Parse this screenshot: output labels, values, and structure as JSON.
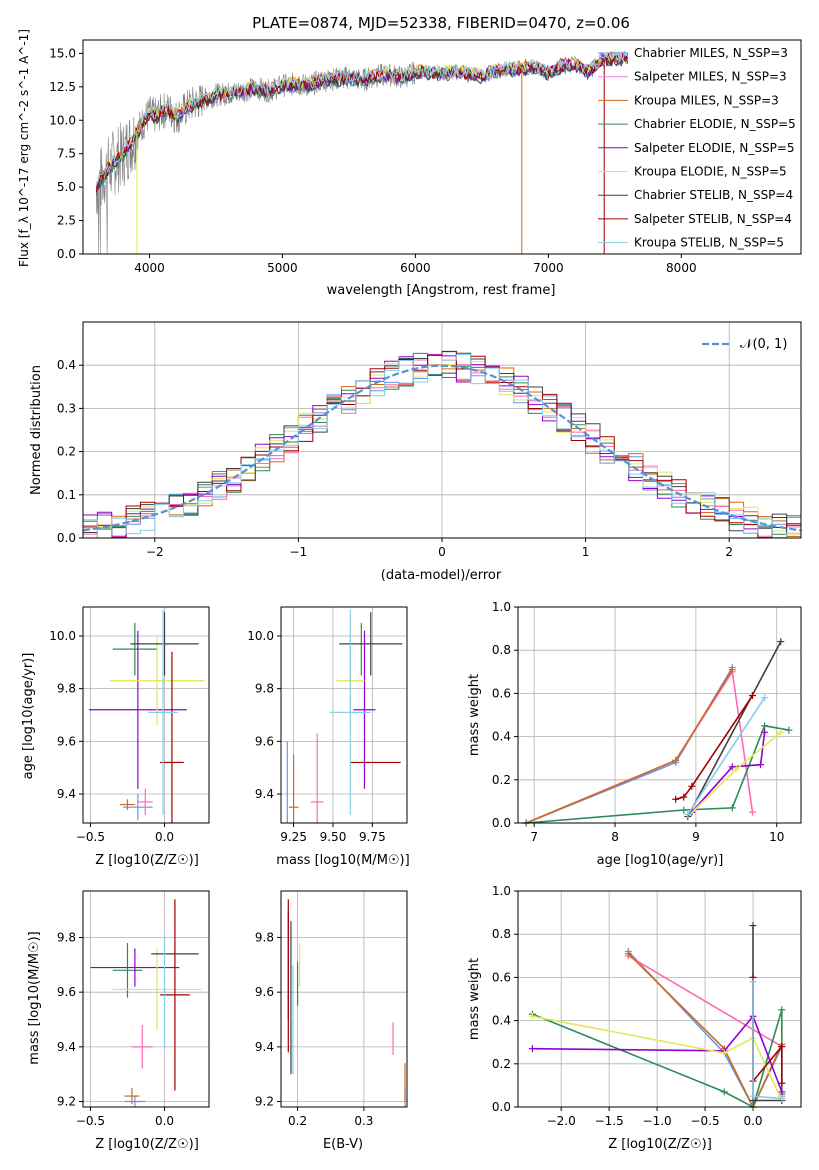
{
  "chart_data": [
    {
      "type": "line",
      "title": "PLATE=0874, MJD=52338, FIBERID=0470, z=0.06",
      "xlabel": "wavelength [Angstrom, rest frame]",
      "ylabel": "Flux [f_λ 10^-17 erg cm^-2 s^-1 A^-1]",
      "xlim": [
        3500,
        8900
      ],
      "ylim": [
        0,
        16
      ],
      "xticks": [
        "4000",
        "5000",
        "6000",
        "7000",
        "8000"
      ],
      "yticks": [
        "0.0",
        "2.5",
        "5.0",
        "7.5",
        "10.0",
        "12.5",
        "15.0"
      ],
      "legend_loc": "right",
      "series": [
        {
          "name": "Chabrier MILES, N_SSP=3",
          "color": "#6495ed"
        },
        {
          "name": "Salpeter MILES, N_SSP=3",
          "color": "#ee82ee"
        },
        {
          "name": "Kroupa MILES, N_SSP=3",
          "color": "#d2691e"
        },
        {
          "name": "Chabrier ELODIE, N_SSP=5",
          "color": "#2e8b57"
        },
        {
          "name": "Salpeter ELODIE, N_SSP=5",
          "color": "#9400d3"
        },
        {
          "name": "Kroupa ELODIE, N_SSP=5",
          "color": "#e6e65a"
        },
        {
          "name": "Chabrier STELIB, N_SSP=4",
          "color": "#404040"
        },
        {
          "name": "Salpeter STELIB, N_SSP=4",
          "color": "#a00000"
        },
        {
          "name": "Kroupa STELIB, N_SSP=5",
          "color": "#87ceeb"
        }
      ],
      "model_curve": {
        "x": [
          3600,
          3650,
          3700,
          3750,
          3800,
          3850,
          3900,
          3950,
          4000,
          4050,
          4100,
          4150,
          4200,
          4300,
          4400,
          4500,
          4600,
          4700,
          4800,
          4900,
          5000,
          5100,
          5200,
          5300,
          5400,
          5500,
          5600,
          5700,
          5800,
          5900,
          6000,
          6100,
          6200,
          6300,
          6400,
          6500,
          6600,
          6700,
          6800,
          6900,
          7000,
          7100,
          7200,
          7300,
          7400,
          7500,
          7600
        ],
        "y": [
          5.0,
          5.8,
          6.5,
          7.0,
          7.4,
          8.2,
          9.0,
          9.8,
          10.5,
          10.3,
          10.7,
          10.8,
          10.2,
          11.1,
          11.5,
          11.9,
          12.0,
          12.2,
          12.4,
          12.2,
          12.6,
          12.7,
          12.6,
          13.0,
          13.1,
          13.2,
          13.0,
          13.3,
          13.4,
          13.2,
          13.6,
          13.6,
          13.5,
          13.6,
          13.5,
          13.3,
          13.7,
          13.8,
          13.9,
          14.0,
          13.5,
          14.1,
          14.2,
          13.6,
          14.5,
          14.6,
          14.6
        ]
      },
      "data_spectrum_color": "#808080"
    },
    {
      "type": "line",
      "xlabel": "(data-model)/error",
      "ylabel": "Normed distribution",
      "xlim": [
        -2.5,
        2.5
      ],
      "ylim": [
        0,
        0.5
      ],
      "xticks": [
        "−2",
        "−1",
        "0",
        "1",
        "2"
      ],
      "yticks": [
        "0.0",
        "0.1",
        "0.2",
        "0.3",
        "0.4"
      ],
      "legend_label": "𝒩(0, 1)",
      "gaussian": {
        "mu": 0,
        "sigma": 1,
        "color": "#5b8fd6"
      }
    },
    {
      "type": "scatter",
      "xlabel": "Z [log10(Z/Z☉)]",
      "ylabel": "age [log10(age/yr)]",
      "xlim": [
        -0.55,
        0.3
      ],
      "ylim": [
        9.29,
        10.11
      ],
      "xticks": [
        "−0.5",
        "0.0"
      ],
      "yticks": [
        "9.4",
        "9.6",
        "9.8",
        "10.0"
      ],
      "points": [
        {
          "x": -0.18,
          "y": 9.35,
          "xerr": 0.1,
          "yerr": 0.05,
          "color": "#6495ed"
        },
        {
          "x": -0.13,
          "y": 9.37,
          "xerr": 0.05,
          "yerr": 0.05,
          "color": "#ff69b4"
        },
        {
          "x": -0.25,
          "y": 9.36,
          "xerr": 0.05,
          "yerr": 0.02,
          "color": "#d2691e"
        },
        {
          "x": -0.2,
          "y": 9.95,
          "xerr": 0.15,
          "yerr": 0.1,
          "color": "#2e8b57"
        },
        {
          "x": -0.18,
          "y": 9.72,
          "xerr": 0.33,
          "yerr": 0.3,
          "color": "#9400d3"
        },
        {
          "x": -0.05,
          "y": 9.83,
          "xerr": 0.32,
          "yerr": 0.17,
          "color": "#e6e65a"
        },
        {
          "x": 0.0,
          "y": 9.97,
          "xerr": 0.23,
          "yerr": 0.12,
          "color": "#404040"
        },
        {
          "x": 0.05,
          "y": 9.52,
          "xerr": 0.08,
          "yerr": 0.42,
          "color": "#a00000"
        },
        {
          "x": -0.01,
          "y": 9.71,
          "xerr": 0.1,
          "yerr": 0.39,
          "color": "#87ceeb"
        }
      ]
    },
    {
      "type": "scatter",
      "xlabel": "mass [log10(M/M☉)]",
      "xlim": [
        9.17,
        9.97
      ],
      "ylim": [
        9.29,
        10.11
      ],
      "xticks": [
        "9.25",
        "9.50",
        "9.75"
      ],
      "yticks": [
        "9.4",
        "9.6",
        "9.8",
        "10.0"
      ],
      "points": [
        {
          "x": 9.21,
          "y": 9.35,
          "xerr": 0.0,
          "yerr": 0.25,
          "color": "#6495ed"
        },
        {
          "x": 9.4,
          "y": 9.37,
          "xerr": 0.04,
          "yerr": 0.26,
          "color": "#ff69b4"
        },
        {
          "x": 9.25,
          "y": 9.35,
          "xerr": 0.03,
          "yerr": 0.2,
          "color": "#d2691e"
        },
        {
          "x": 9.68,
          "y": 9.95,
          "xerr": 0.0,
          "yerr": 0.1,
          "color": "#2e8b57"
        },
        {
          "x": 9.7,
          "y": 9.72,
          "xerr": 0.07,
          "yerr": 0.3,
          "color": "#9400d3"
        },
        {
          "x": 9.61,
          "y": 9.83,
          "xerr": 0.09,
          "yerr": 0.17,
          "color": "#e6e65a"
        },
        {
          "x": 9.74,
          "y": 9.97,
          "xerr": 0.2,
          "yerr": 0.12,
          "color": "#404040"
        },
        {
          "x": 9.77,
          "y": 9.52,
          "xerr": 0.16,
          "yerr": 0.0,
          "color": "#a00000"
        },
        {
          "x": 9.61,
          "y": 9.71,
          "xerr": 0.13,
          "yerr": 0.39,
          "color": "#87ceeb"
        }
      ]
    },
    {
      "type": "line",
      "xlabel": "age [log10(age/yr)]",
      "ylabel": "mass weight",
      "xlim": [
        6.8,
        10.3
      ],
      "ylim": [
        0,
        1
      ],
      "xticks": [
        "7",
        "8",
        "9",
        "10"
      ],
      "yticks": [
        "0.0",
        "0.2",
        "0.4",
        "0.6",
        "0.8",
        "1.0"
      ],
      "series": [
        {
          "color": "#6495ed",
          "x": [
            6.9,
            8.75,
            9.45
          ],
          "y": [
            0.0,
            0.28,
            0.72
          ]
        },
        {
          "color": "#ff69b4",
          "x": [
            6.9,
            8.75,
            9.45,
            9.7
          ],
          "y": [
            0.0,
            0.29,
            0.7,
            0.05
          ]
        },
        {
          "color": "#d2691e",
          "x": [
            6.9,
            8.75,
            9.45
          ],
          "y": [
            0.0,
            0.29,
            0.71
          ]
        },
        {
          "color": "#2e8b57",
          "x": [
            6.9,
            8.85,
            9.45,
            9.85,
            10.15
          ],
          "y": [
            0.0,
            0.06,
            0.07,
            0.45,
            0.43
          ]
        },
        {
          "color": "#9400d3",
          "x": [
            8.95,
            9.45,
            9.8,
            9.85
          ],
          "y": [
            0.05,
            0.26,
            0.27,
            0.42
          ]
        },
        {
          "color": "#e6e65a",
          "x": [
            8.9,
            9.5,
            10.05
          ],
          "y": [
            0.03,
            0.25,
            0.42
          ]
        },
        {
          "color": "#404040",
          "x": [
            8.9,
            10.05
          ],
          "y": [
            0.03,
            0.84
          ]
        },
        {
          "color": "#a00000",
          "x": [
            8.75,
            8.85,
            8.95,
            9.7
          ],
          "y": [
            0.11,
            0.12,
            0.17,
            0.59
          ]
        },
        {
          "color": "#87ceeb",
          "x": [
            8.9,
            9.85
          ],
          "y": [
            0.04,
            0.58
          ]
        }
      ]
    },
    {
      "type": "scatter",
      "xlabel": "Z [log10(Z/Z☉)]",
      "ylabel": "mass [log10(M/M☉)]",
      "xlim": [
        -0.55,
        0.3
      ],
      "ylim": [
        9.18,
        9.97
      ],
      "xticks": [
        "−0.5",
        "0.0"
      ],
      "yticks": [
        "9.2",
        "9.4",
        "9.6",
        "9.8"
      ],
      "points": [
        {
          "x": -0.2,
          "y": 9.2,
          "xerr": 0.07,
          "yerr": 0.02,
          "color": "#6495ed"
        },
        {
          "x": -0.15,
          "y": 9.4,
          "xerr": 0.07,
          "yerr": 0.08,
          "color": "#ff69b4"
        },
        {
          "x": -0.22,
          "y": 9.22,
          "xerr": 0.05,
          "yerr": 0.03,
          "color": "#d2691e"
        },
        {
          "x": -0.25,
          "y": 9.68,
          "xerr": 0.1,
          "yerr": 0.1,
          "color": "#2e8b57"
        },
        {
          "x": -0.2,
          "y": 9.69,
          "xerr": 0.3,
          "yerr": 0.07,
          "color": "#9400d3"
        },
        {
          "x": -0.05,
          "y": 9.61,
          "xerr": 0.3,
          "yerr": 0.15,
          "color": "#e6e65a"
        },
        {
          "x": 0.07,
          "y": 9.74,
          "xerr": 0.16,
          "yerr": 0.0,
          "color": "#404040"
        },
        {
          "x": 0.07,
          "y": 9.59,
          "xerr": 0.1,
          "yerr": 0.35,
          "color": "#a00000"
        },
        {
          "x": 0.0,
          "y": 9.6,
          "xerr": 0.01,
          "yerr": 0.2,
          "color": "#87ceeb"
        }
      ]
    },
    {
      "type": "scatter",
      "xlabel": "E(B-V)",
      "xlim": [
        0.175,
        0.365
      ],
      "ylim": [
        9.18,
        9.97
      ],
      "xticks": [
        "0.2",
        "0.3"
      ],
      "yticks": [
        "9.2",
        "9.4",
        "9.6",
        "9.8"
      ],
      "points": [
        {
          "x": 0.362,
          "y": 9.21,
          "yerr": 0.04,
          "color": "#6495ed"
        },
        {
          "x": 0.344,
          "y": 9.43,
          "yerr": 0.06,
          "color": "#ff69b4"
        },
        {
          "x": 0.362,
          "y": 9.27,
          "yerr": 0.07,
          "color": "#d2691e"
        },
        {
          "x": 0.2,
          "y": 9.63,
          "yerr": 0.08,
          "color": "#2e8b57"
        },
        {
          "x": 0.186,
          "y": 9.7,
          "yerr": 0.2,
          "color": "#9400d3"
        },
        {
          "x": 0.203,
          "y": 9.7,
          "yerr": 0.08,
          "color": "#e6e65a"
        },
        {
          "x": 0.19,
          "y": 9.58,
          "yerr": 0.28,
          "color": "#404040"
        },
        {
          "x": 0.186,
          "y": 9.66,
          "yerr": 0.28,
          "color": "#a00000"
        },
        {
          "x": 0.193,
          "y": 9.5,
          "yerr": 0.2,
          "color": "#87ceeb"
        }
      ]
    },
    {
      "type": "line",
      "xlabel": "Z [log10(Z/Z☉)]",
      "ylabel": "mass weight",
      "xlim": [
        -2.45,
        0.5
      ],
      "ylim": [
        0,
        1
      ],
      "xticks": [
        "−2.0",
        "−1.5",
        "−1.0",
        "−0.5",
        "0.0"
      ],
      "yticks": [
        "0.0",
        "0.2",
        "0.4",
        "0.6",
        "0.8",
        "1.0"
      ],
      "series": [
        {
          "color": "#6495ed",
          "x": [
            -1.3,
            -0.3,
            0.0,
            0.3
          ],
          "y": [
            0.72,
            0.25,
            0.0,
            0.28
          ]
        },
        {
          "color": "#ff69b4",
          "x": [
            -1.3,
            0.3,
            0.3
          ],
          "y": [
            0.7,
            0.28,
            0.05
          ]
        },
        {
          "color": "#d2691e",
          "x": [
            -1.3,
            -0.3,
            0.0,
            0.3
          ],
          "y": [
            0.71,
            0.27,
            0.0,
            0.29
          ]
        },
        {
          "color": "#2e8b57",
          "x": [
            -2.3,
            -0.3,
            0.0,
            0.3,
            0.3
          ],
          "y": [
            0.43,
            0.07,
            0.0,
            0.45,
            0.06
          ]
        },
        {
          "color": "#9400d3",
          "x": [
            -2.3,
            -0.3,
            0.0,
            0.3
          ],
          "y": [
            0.27,
            0.26,
            0.42,
            0.07
          ]
        },
        {
          "color": "#e6e65a",
          "x": [
            -2.3,
            -0.3,
            0.0,
            0.3
          ],
          "y": [
            0.42,
            0.25,
            0.32,
            0.03
          ]
        },
        {
          "color": "#404040",
          "x": [
            0.0,
            0.0,
            0.3
          ],
          "y": [
            0.84,
            0.03,
            0.03
          ]
        },
        {
          "color": "#a00000",
          "x": [
            0.0,
            0.0,
            0.3,
            0.3
          ],
          "y": [
            0.6,
            0.12,
            0.28,
            0.11
          ]
        },
        {
          "color": "#87ceeb",
          "x": [
            0.0,
            0.0,
            0.3
          ],
          "y": [
            0.58,
            0.05,
            0.04
          ]
        }
      ]
    }
  ]
}
